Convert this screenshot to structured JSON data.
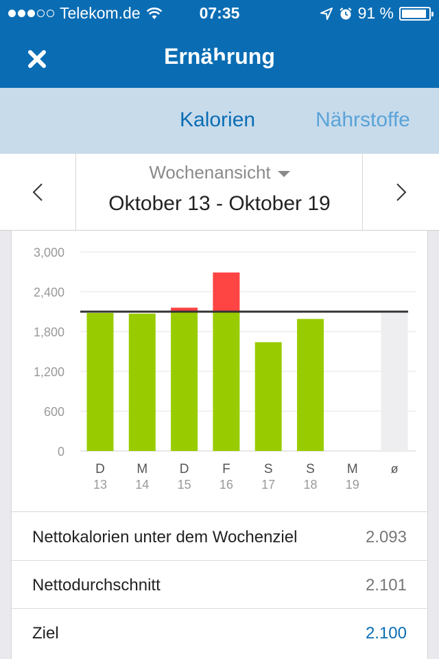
{
  "status_bar": {
    "carrier": "Telekom.de",
    "time": "07:35",
    "battery": "91 %",
    "battery_level": 0.91,
    "signal_bars_filled": 3,
    "signal_bars_total": 5
  },
  "nav": {
    "title": "Ernährung"
  },
  "tabs": [
    {
      "label": "Kalorien",
      "active": true
    },
    {
      "label": "Nährstoffe",
      "active": false
    }
  ],
  "week_selector": {
    "view_label": "Wochenansicht",
    "range": "Oktober 13 - Oktober 19"
  },
  "colors": {
    "brand_blue": "#0a6db4",
    "bar_green": "#99cc00",
    "bar_red": "#ff4444",
    "average_gray": "#eeeef1",
    "goal_line": "#333333"
  },
  "chart_data": {
    "type": "bar",
    "y_ticks": [
      "3,000",
      "2,400",
      "1,800",
      "1,200",
      "600",
      "0"
    ],
    "y_tick_values": [
      3000,
      2400,
      1800,
      1200,
      600,
      0
    ],
    "ylim": [
      0,
      3000
    ],
    "goal": 2100,
    "categories": [
      {
        "day": "D",
        "date": "13",
        "value": 2080,
        "over": 0
      },
      {
        "day": "M",
        "date": "14",
        "value": 2070,
        "over": 0
      },
      {
        "day": "D",
        "date": "15",
        "value": 2100,
        "over": 60
      },
      {
        "day": "F",
        "date": "16",
        "value": 2100,
        "over": 590
      },
      {
        "day": "S",
        "date": "17",
        "value": 1640,
        "over": 0
      },
      {
        "day": "S",
        "date": "18",
        "value": 1990,
        "over": 0
      },
      {
        "day": "M",
        "date": "19",
        "value": 0,
        "over": 0
      }
    ],
    "average": {
      "label": "ø",
      "value": 2080
    }
  },
  "summary": [
    {
      "label": "Nettokalorien unter dem Wochenziel",
      "value": "2.093",
      "accent": false
    },
    {
      "label": "Nettodurchschnitt",
      "value": "2.101",
      "accent": false
    },
    {
      "label": "Ziel",
      "value": "2.100",
      "accent": true
    }
  ]
}
